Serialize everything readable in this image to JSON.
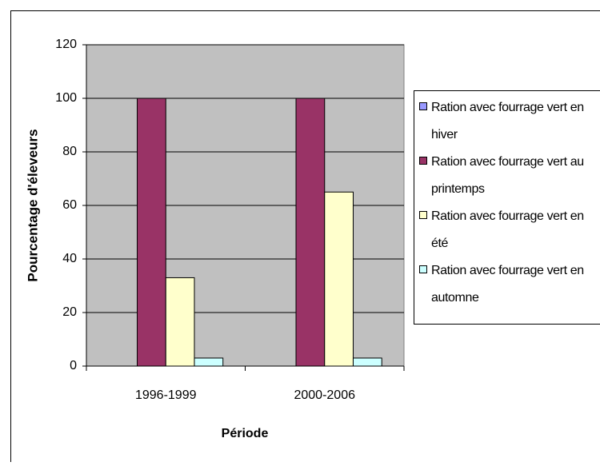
{
  "chart_data": {
    "type": "bar",
    "categories": [
      "1996-1999",
      "2000-2006"
    ],
    "series": [
      {
        "name": "Ration avec fourrage vert en hiver",
        "color": "#9999ff",
        "values": [
          0,
          0
        ]
      },
      {
        "name": "Ration avec fourrage vert au printemps",
        "color": "#993366",
        "values": [
          100,
          100
        ]
      },
      {
        "name": "Ration avec fourrage vert en été",
        "color": "#ffffcc",
        "values": [
          33,
          65
        ]
      },
      {
        "name": "Ration avec fourrage vert en automne",
        "color": "#ccffff",
        "values": [
          3,
          3
        ]
      }
    ],
    "x_label": "Période",
    "y_label": "Pourcentage d'éleveurs",
    "ylim": [
      0,
      120
    ],
    "yticks": [
      0,
      20,
      40,
      60,
      80,
      100,
      120
    ],
    "grid": true,
    "plot_background": "#c0c0c0",
    "legend": "right"
  }
}
